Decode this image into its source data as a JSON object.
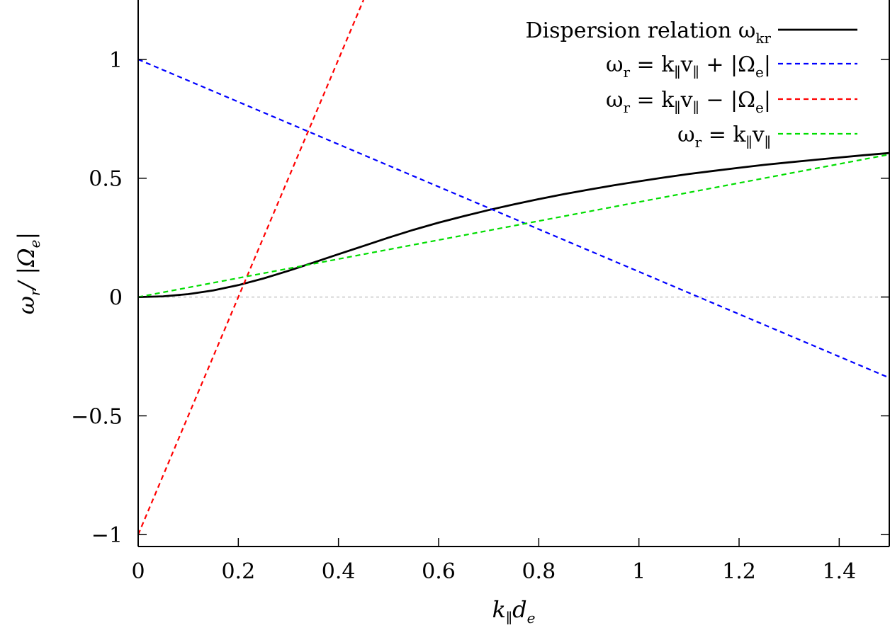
{
  "chart_data": {
    "type": "line",
    "title": "",
    "xlabel": "k∥dₑ",
    "ylabel": "ωᵣ/|Ωₑ|",
    "xlim": [
      0,
      1.5
    ],
    "ylim": [
      -1.05,
      1.25
    ],
    "grid": false,
    "legend_position": "top-right",
    "x_ticks": [
      0,
      0.2,
      0.4,
      0.6,
      0.8,
      1,
      1.2,
      1.4
    ],
    "x_tick_labels": [
      "0",
      "0.2",
      "0.4",
      "0.6",
      "0.8",
      "1",
      "1.2",
      "1.4"
    ],
    "y_ticks": [
      -1,
      -0.5,
      0,
      0.5,
      1
    ],
    "y_tick_labels": [
      "−1",
      "−0.5",
      "0",
      "0.5",
      "1"
    ],
    "zero_line": {
      "y": 0,
      "color": "#c8c8c8",
      "dashed": true
    },
    "series": [
      {
        "name": "Dispersion relation ωkr",
        "legend_parts": [
          {
            "t": "Dispersion relation ω"
          },
          {
            "t": "kr",
            "sub": true
          }
        ],
        "color": "#000000",
        "dashed": false,
        "x": [
          0,
          0.05,
          0.1,
          0.15,
          0.2,
          0.25,
          0.3,
          0.35,
          0.4,
          0.45,
          0.5,
          0.55,
          0.6,
          0.65,
          0.7,
          0.75,
          0.8,
          0.85,
          0.9,
          0.95,
          1.0,
          1.05,
          1.1,
          1.15,
          1.2,
          1.25,
          1.3,
          1.35,
          1.4,
          1.45,
          1.5
        ],
        "y": [
          0,
          0.003,
          0.012,
          0.028,
          0.05,
          0.078,
          0.11,
          0.145,
          0.18,
          0.215,
          0.25,
          0.283,
          0.313,
          0.34,
          0.366,
          0.39,
          0.412,
          0.433,
          0.452,
          0.47,
          0.487,
          0.503,
          0.518,
          0.531,
          0.544,
          0.556,
          0.567,
          0.577,
          0.587,
          0.597,
          0.606
        ]
      },
      {
        "name": "ωr = k∥v∥ + |Ωe|",
        "legend_parts": [
          {
            "t": "ω"
          },
          {
            "t": "r",
            "sub": true
          },
          {
            "t": " = k"
          },
          {
            "t": "∥",
            "sub": true
          },
          {
            "t": "v"
          },
          {
            "t": "∥",
            "sub": true
          },
          {
            "t": " + |Ω"
          },
          {
            "t": "e",
            "sub": true
          },
          {
            "t": "|"
          }
        ],
        "color": "#0000ff",
        "dashed": true,
        "x": [
          0,
          1.5
        ],
        "y": [
          1.0,
          -0.34
        ]
      },
      {
        "name": "ωr = k∥v∥ − |Ωe|",
        "legend_parts": [
          {
            "t": "ω"
          },
          {
            "t": "r",
            "sub": true
          },
          {
            "t": " = k"
          },
          {
            "t": "∥",
            "sub": true
          },
          {
            "t": "v"
          },
          {
            "t": "∥",
            "sub": true
          },
          {
            "t": " − |Ω"
          },
          {
            "t": "e",
            "sub": true
          },
          {
            "t": "|"
          }
        ],
        "color": "#ff0000",
        "dashed": true,
        "x": [
          0,
          0.45
        ],
        "y": [
          -1.0,
          1.25
        ]
      },
      {
        "name": "ωr = k∥v∥",
        "legend_parts": [
          {
            "t": "ω"
          },
          {
            "t": "r",
            "sub": true
          },
          {
            "t": " = k"
          },
          {
            "t": "∥",
            "sub": true
          },
          {
            "t": "v"
          },
          {
            "t": "∥",
            "sub": true
          }
        ],
        "color": "#00dd00",
        "dashed": true,
        "x": [
          0,
          1.5
        ],
        "y": [
          0,
          0.6
        ]
      }
    ]
  }
}
